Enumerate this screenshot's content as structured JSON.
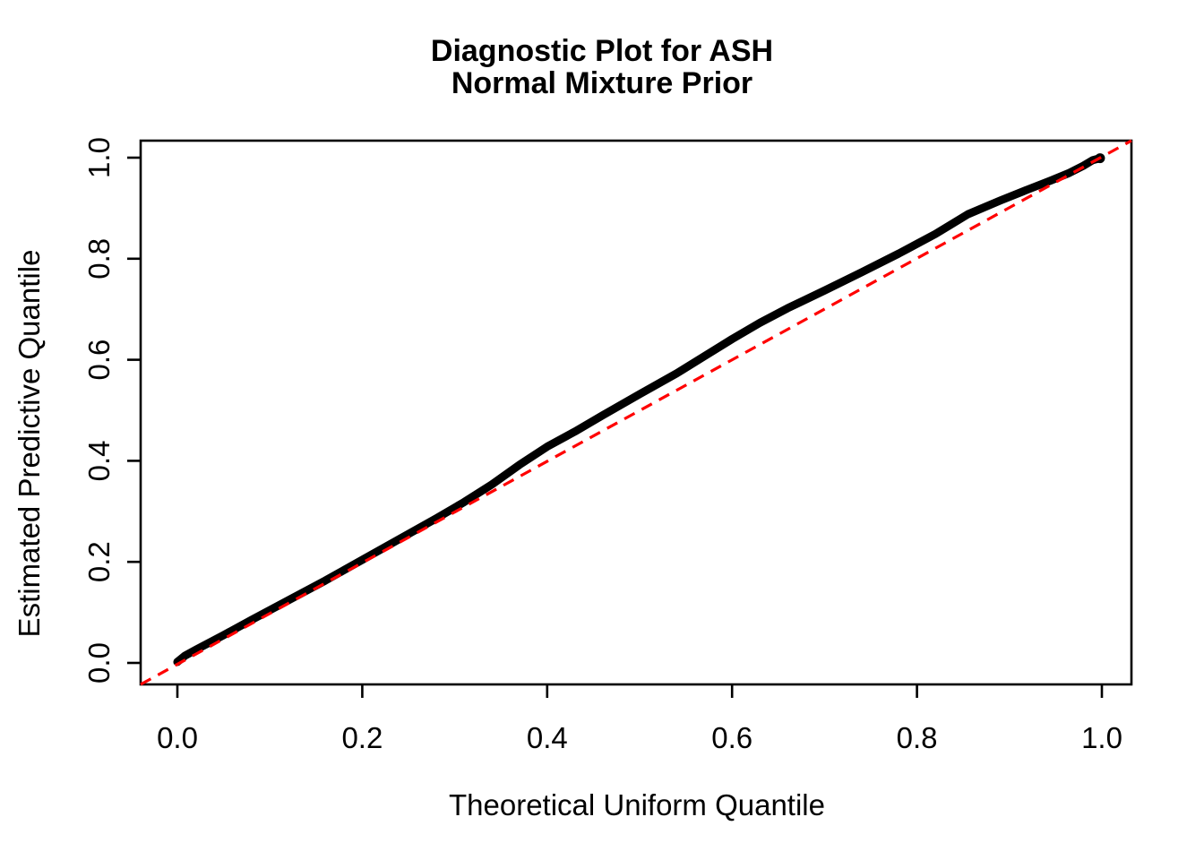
{
  "figure": {
    "title_line1": "Diagnostic Plot for ASH",
    "title_line2": "Normal Mixture Prior",
    "xlabel": "Theoretical Uniform Quantile",
    "ylabel": "Estimated Predictive Quantile",
    "x_tick_labels": [
      "0.0",
      "0.2",
      "0.4",
      "0.6",
      "0.8",
      "1.0"
    ],
    "y_tick_labels": [
      "0.0",
      "0.2",
      "0.4",
      "0.6",
      "0.8",
      "1.0"
    ],
    "colors": {
      "curve": "#000000",
      "reference_line": "#FF0000",
      "axis": "#000000",
      "background": "#FFFFFF",
      "text": "#000000"
    }
  },
  "chart_data": {
    "type": "line",
    "title": "Diagnostic Plot for ASH\nNormal Mixture Prior",
    "xlabel": "Theoretical Uniform Quantile",
    "ylabel": "Estimated Predictive Quantile",
    "xlim": [
      -0.04,
      1.04
    ],
    "ylim": [
      -0.04,
      1.04
    ],
    "x_ticks": [
      0,
      0.2,
      0.4,
      0.6,
      0.8,
      1.0
    ],
    "y_ticks": [
      0,
      0.2,
      0.4,
      0.6,
      0.8,
      1.0
    ],
    "grid": false,
    "legend": null,
    "series": [
      {
        "name": "estimated_predictive_quantile_curve",
        "style": "thick-solid-points",
        "color": "#000000",
        "points": [
          [
            0.0,
            0.002
          ],
          [
            0.008,
            0.014
          ],
          [
            0.02,
            0.026
          ],
          [
            0.05,
            0.055
          ],
          [
            0.08,
            0.085
          ],
          [
            0.12,
            0.124
          ],
          [
            0.16,
            0.163
          ],
          [
            0.2,
            0.204
          ],
          [
            0.24,
            0.245
          ],
          [
            0.28,
            0.286
          ],
          [
            0.31,
            0.318
          ],
          [
            0.34,
            0.353
          ],
          [
            0.37,
            0.392
          ],
          [
            0.4,
            0.428
          ],
          [
            0.43,
            0.458
          ],
          [
            0.46,
            0.49
          ],
          [
            0.5,
            0.532
          ],
          [
            0.54,
            0.573
          ],
          [
            0.57,
            0.607
          ],
          [
            0.6,
            0.641
          ],
          [
            0.63,
            0.673
          ],
          [
            0.66,
            0.702
          ],
          [
            0.7,
            0.737
          ],
          [
            0.74,
            0.773
          ],
          [
            0.78,
            0.81
          ],
          [
            0.82,
            0.849
          ],
          [
            0.855,
            0.888
          ],
          [
            0.89,
            0.915
          ],
          [
            0.92,
            0.937
          ],
          [
            0.945,
            0.955
          ],
          [
            0.965,
            0.97
          ],
          [
            0.98,
            0.984
          ],
          [
            0.99,
            0.995
          ],
          [
            0.998,
            0.999
          ]
        ]
      },
      {
        "name": "y_equals_x_reference_line",
        "style": "dashed",
        "color": "#FF0000",
        "points": [
          [
            -0.04,
            -0.04
          ],
          [
            1.04,
            1.04
          ]
        ]
      }
    ]
  }
}
